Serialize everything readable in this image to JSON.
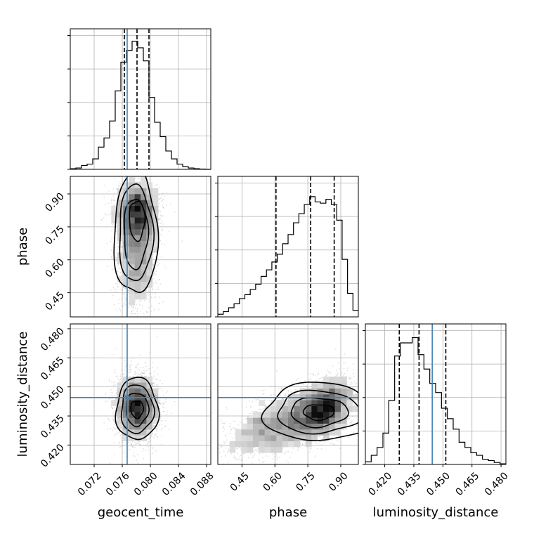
{
  "chart_data": {
    "type": "corner",
    "parameters": [
      "geocent_time",
      "phase",
      "luminosity_distance"
    ],
    "axis_labels": [
      "geocent_time",
      "phase",
      "luminosity_distance"
    ],
    "ranges": {
      "geocent_time": [
        0.0686,
        0.0886
      ],
      "phase": [
        0.34,
        0.98
      ],
      "luminosity_distance": [
        0.41,
        0.4825
      ]
    },
    "ticks": {
      "geocent_time": [
        0.072,
        0.076,
        0.08,
        0.084,
        0.088
      ],
      "phase": [
        0.45,
        0.6,
        0.75,
        0.9
      ],
      "luminosity_distance": [
        0.42,
        0.435,
        0.45,
        0.465,
        0.48
      ]
    },
    "tick_labels": {
      "geocent_time": [
        "0.072",
        "0.076",
        "0.080",
        "0.084",
        "0.088"
      ],
      "phase": [
        "0.45",
        "0.60",
        "0.75",
        "0.90"
      ],
      "luminosity_distance": [
        "0.420",
        "0.435",
        "0.450",
        "0.465",
        "0.480"
      ]
    },
    "truths": {
      "geocent_time": 0.0767,
      "phase": null,
      "luminosity_distance": 0.4445
    },
    "quantiles": {
      "geocent_time": [
        0.0763,
        0.0781,
        0.0798
      ],
      "phase": [
        0.605,
        0.763,
        0.87
      ],
      "luminosity_distance": [
        0.4275,
        0.4377,
        0.4515
      ]
    },
    "histograms": {
      "geocent_time": [
        0.005,
        0.01,
        0.03,
        0.04,
        0.08,
        0.17,
        0.24,
        0.37,
        0.6,
        0.82,
        0.91,
        0.98,
        0.93,
        0.83,
        0.55,
        0.36,
        0.25,
        0.14,
        0.08,
        0.04,
        0.02,
        0.01,
        0.005,
        0.002,
        0.0
      ],
      "phase": [
        0.02,
        0.04,
        0.07,
        0.1,
        0.14,
        0.17,
        0.21,
        0.25,
        0.31,
        0.36,
        0.42,
        0.48,
        0.56,
        0.63,
        0.72,
        0.79,
        0.86,
        0.92,
        0.88,
        0.87,
        0.9,
        0.86,
        0.74,
        0.44,
        0.18,
        0.05
      ],
      "luminosity_distance": [
        0.02,
        0.07,
        0.13,
        0.24,
        0.49,
        0.83,
        0.93,
        0.93,
        0.97,
        0.84,
        0.73,
        0.62,
        0.55,
        0.43,
        0.35,
        0.27,
        0.17,
        0.13,
        0.09,
        0.07,
        0.04,
        0.03,
        0.015,
        0.005
      ]
    },
    "grid": true,
    "truth_color": "#4682b4",
    "quantile_color": "#000000",
    "points_color": "#999999"
  }
}
